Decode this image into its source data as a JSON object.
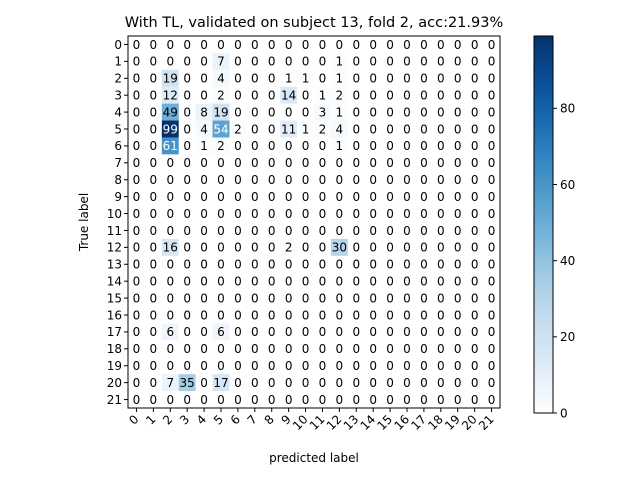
{
  "chart_data": {
    "type": "heatmap",
    "title": "With TL, validated on subject 13, fold 2, acc:21.93%",
    "xlabel": "predicted label",
    "ylabel": "True label",
    "x_tick_labels": [
      "0",
      "1",
      "2",
      "3",
      "4",
      "5",
      "6",
      "7",
      "8",
      "9",
      "10",
      "11",
      "12",
      "13",
      "14",
      "15",
      "16",
      "17",
      "18",
      "19",
      "20",
      "21"
    ],
    "y_tick_labels": [
      "0",
      "1",
      "2",
      "3",
      "4",
      "5",
      "6",
      "7",
      "8",
      "9",
      "10",
      "11",
      "12",
      "13",
      "14",
      "15",
      "16",
      "17",
      "18",
      "19",
      "20",
      "21"
    ],
    "colormap": "Blues",
    "colorbar": {
      "min": 0,
      "max": 99,
      "ticks": [
        0,
        20,
        40,
        60,
        80
      ]
    },
    "matrix": [
      [
        0,
        0,
        0,
        0,
        0,
        0,
        0,
        0,
        0,
        0,
        0,
        0,
        0,
        0,
        0,
        0,
        0,
        0,
        0,
        0,
        0,
        0
      ],
      [
        0,
        0,
        0,
        0,
        0,
        7,
        0,
        0,
        0,
        0,
        0,
        0,
        1,
        0,
        0,
        0,
        0,
        0,
        0,
        0,
        0,
        0
      ],
      [
        0,
        0,
        19,
        0,
        0,
        4,
        0,
        0,
        0,
        1,
        1,
        0,
        1,
        0,
        0,
        0,
        0,
        0,
        0,
        0,
        0,
        0
      ],
      [
        0,
        0,
        12,
        0,
        0,
        2,
        0,
        0,
        0,
        14,
        0,
        1,
        2,
        0,
        0,
        0,
        0,
        0,
        0,
        0,
        0,
        0
      ],
      [
        0,
        0,
        49,
        0,
        8,
        19,
        0,
        0,
        0,
        0,
        0,
        3,
        1,
        0,
        0,
        0,
        0,
        0,
        0,
        0,
        0,
        0
      ],
      [
        0,
        0,
        99,
        0,
        4,
        54,
        2,
        0,
        0,
        11,
        1,
        2,
        4,
        0,
        0,
        0,
        0,
        0,
        0,
        0,
        0,
        0
      ],
      [
        0,
        0,
        61,
        0,
        1,
        2,
        0,
        0,
        0,
        0,
        0,
        0,
        1,
        0,
        0,
        0,
        0,
        0,
        0,
        0,
        0,
        0
      ],
      [
        0,
        0,
        0,
        0,
        0,
        0,
        0,
        0,
        0,
        0,
        0,
        0,
        0,
        0,
        0,
        0,
        0,
        0,
        0,
        0,
        0,
        0
      ],
      [
        0,
        0,
        0,
        0,
        0,
        0,
        0,
        0,
        0,
        0,
        0,
        0,
        0,
        0,
        0,
        0,
        0,
        0,
        0,
        0,
        0,
        0
      ],
      [
        0,
        0,
        0,
        0,
        0,
        0,
        0,
        0,
        0,
        0,
        0,
        0,
        0,
        0,
        0,
        0,
        0,
        0,
        0,
        0,
        0,
        0
      ],
      [
        0,
        0,
        0,
        0,
        0,
        0,
        0,
        0,
        0,
        0,
        0,
        0,
        0,
        0,
        0,
        0,
        0,
        0,
        0,
        0,
        0,
        0
      ],
      [
        0,
        0,
        0,
        0,
        0,
        0,
        0,
        0,
        0,
        0,
        0,
        0,
        0,
        0,
        0,
        0,
        0,
        0,
        0,
        0,
        0,
        0
      ],
      [
        0,
        0,
        16,
        0,
        0,
        0,
        0,
        0,
        0,
        2,
        0,
        0,
        30,
        0,
        0,
        0,
        0,
        0,
        0,
        0,
        0,
        0
      ],
      [
        0,
        0,
        0,
        0,
        0,
        0,
        0,
        0,
        0,
        0,
        0,
        0,
        0,
        0,
        0,
        0,
        0,
        0,
        0,
        0,
        0,
        0
      ],
      [
        0,
        0,
        0,
        0,
        0,
        0,
        0,
        0,
        0,
        0,
        0,
        0,
        0,
        0,
        0,
        0,
        0,
        0,
        0,
        0,
        0,
        0
      ],
      [
        0,
        0,
        0,
        0,
        0,
        0,
        0,
        0,
        0,
        0,
        0,
        0,
        0,
        0,
        0,
        0,
        0,
        0,
        0,
        0,
        0,
        0
      ],
      [
        0,
        0,
        0,
        0,
        0,
        0,
        0,
        0,
        0,
        0,
        0,
        0,
        0,
        0,
        0,
        0,
        0,
        0,
        0,
        0,
        0,
        0
      ],
      [
        0,
        0,
        6,
        0,
        0,
        6,
        0,
        0,
        0,
        0,
        0,
        0,
        0,
        0,
        0,
        0,
        0,
        0,
        0,
        0,
        0,
        0
      ],
      [
        0,
        0,
        0,
        0,
        0,
        0,
        0,
        0,
        0,
        0,
        0,
        0,
        0,
        0,
        0,
        0,
        0,
        0,
        0,
        0,
        0,
        0
      ],
      [
        0,
        0,
        0,
        0,
        0,
        0,
        0,
        0,
        0,
        0,
        0,
        0,
        0,
        0,
        0,
        0,
        0,
        0,
        0,
        0,
        0,
        0
      ],
      [
        0,
        0,
        7,
        35,
        0,
        17,
        0,
        0,
        0,
        0,
        0,
        0,
        0,
        0,
        0,
        0,
        0,
        0,
        0,
        0,
        0,
        0
      ],
      [
        0,
        0,
        0,
        0,
        0,
        0,
        0,
        0,
        0,
        0,
        0,
        0,
        0,
        0,
        0,
        0,
        0,
        0,
        0,
        0,
        0,
        0
      ]
    ]
  }
}
